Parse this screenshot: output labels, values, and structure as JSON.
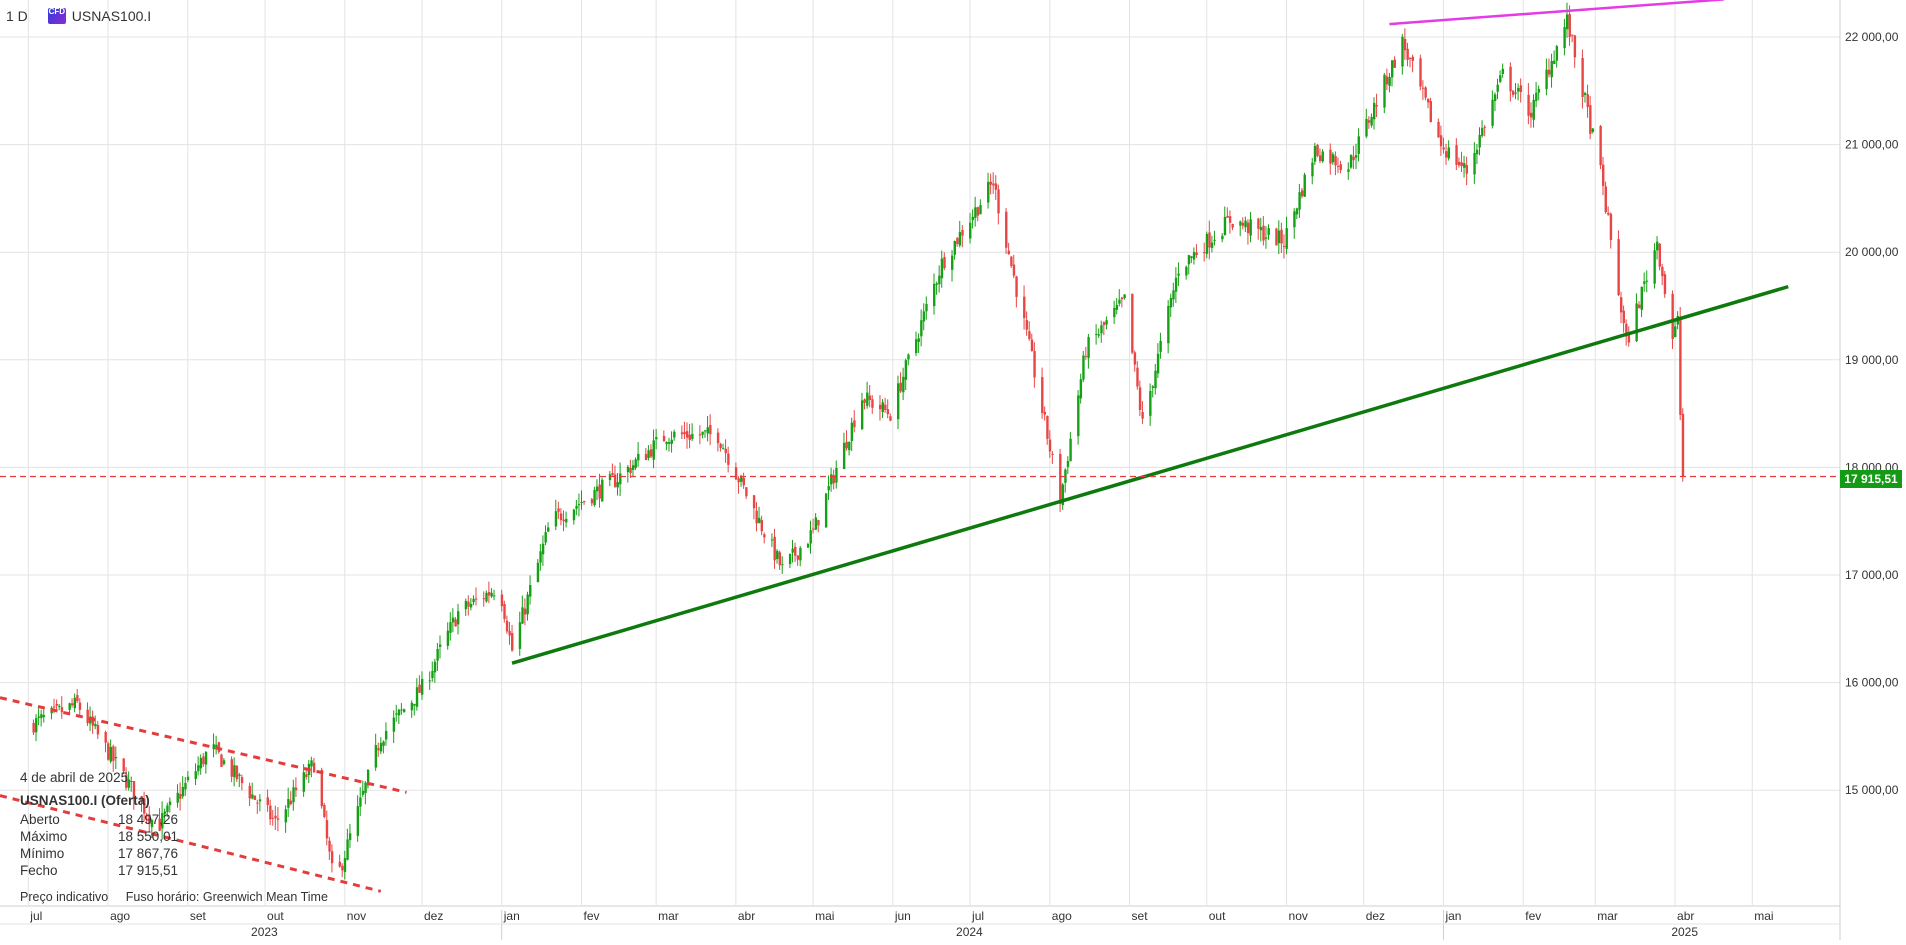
{
  "header": {
    "timeframe": "1 D",
    "cfd_badge": "CFD",
    "symbol": "USNAS100.I"
  },
  "info_panel": {
    "date": "4 de abril de 2025",
    "instrument": "USNAS100.I (Oferta)",
    "rows": [
      {
        "label": "Aberto",
        "value": "18 497,26"
      },
      {
        "label": "Máximo",
        "value": "18 550,01"
      },
      {
        "label": "Mínimo",
        "value": "17 867,76"
      },
      {
        "label": "Fecho",
        "value": "17 915,51"
      }
    ]
  },
  "footer": {
    "note": "Preço indicativo",
    "timezone": "Fuso horário: Greenwich Mean Time"
  },
  "current_price_label": "17 915,51",
  "colors": {
    "up": "#16a016",
    "down": "#e84545",
    "trend_green": "#0e7a0e",
    "trend_magenta": "#e43ce4",
    "channel_red": "#e43c3c",
    "grid": "#e3e3e3",
    "price_tag": "#159a15"
  },
  "chart_data": {
    "type": "candlestick",
    "title": "",
    "ylim": [
      14000,
      22350
    ],
    "y_ticks": [
      "15 000,00",
      "16 000,00",
      "17 000,00",
      "18 000,00",
      "19 000,00",
      "20 000,00",
      "21 000,00",
      "22 000,00"
    ],
    "x_ticks": [
      "jul",
      "ago",
      "set",
      "out",
      "nov",
      "dez",
      "jan",
      "fev",
      "mar",
      "abr",
      "mai",
      "jun",
      "jul",
      "ago",
      "set",
      "out",
      "nov",
      "dez",
      "jan",
      "fev",
      "mar",
      "abr",
      "mai"
    ],
    "years": [
      "2023",
      "2024",
      "2025"
    ],
    "current_price": 17915.51,
    "anchor_points": [
      [
        "2023-07-01",
        15600
      ],
      [
        "2023-07-20",
        15800
      ],
      [
        "2023-08-20",
        14650
      ],
      [
        "2023-09-10",
        15400
      ],
      [
        "2023-10-05",
        14700
      ],
      [
        "2023-10-20",
        15250
      ],
      [
        "2023-10-28",
        14100
      ],
      [
        "2023-11-15",
        15500
      ],
      [
        "2023-12-01",
        15950
      ],
      [
        "2023-12-15",
        16650
      ],
      [
        "2023-12-31",
        16900
      ],
      [
        "2024-01-05",
        16300
      ],
      [
        "2024-01-20",
        17500
      ],
      [
        "2024-02-15",
        17900
      ],
      [
        "2024-03-05",
        18300
      ],
      [
        "2024-03-25",
        18300
      ],
      [
        "2024-04-19",
        17050
      ],
      [
        "2024-05-01",
        17400
      ],
      [
        "2024-05-20",
        18650
      ],
      [
        "2024-05-31",
        18500
      ],
      [
        "2024-06-20",
        19900
      ],
      [
        "2024-07-10",
        20650
      ],
      [
        "2024-07-25",
        19000
      ],
      [
        "2024-08-05",
        17700
      ],
      [
        "2024-08-15",
        19100
      ],
      [
        "2024-08-30",
        19550
      ],
      [
        "2024-09-06",
        18400
      ],
      [
        "2024-09-20",
        19850
      ],
      [
        "2024-10-10",
        20300
      ],
      [
        "2024-10-31",
        20100
      ],
      [
        "2024-11-12",
        20950
      ],
      [
        "2024-11-25",
        20800
      ],
      [
        "2024-12-16",
        21950
      ],
      [
        "2024-12-31",
        21000
      ],
      [
        "2025-01-10",
        20750
      ],
      [
        "2025-01-24",
        21650
      ],
      [
        "2025-02-04",
        21300
      ],
      [
        "2025-02-18",
        22150
      ],
      [
        "2025-03-03",
        20750
      ],
      [
        "2025-03-13",
        19150
      ],
      [
        "2025-03-25",
        20100
      ],
      [
        "2025-03-31",
        19200
      ],
      [
        "2025-04-02",
        19350
      ],
      [
        "2025-04-03",
        18500
      ],
      [
        "2025-04-04",
        17915.51
      ]
    ],
    "annotations": [
      {
        "type": "trendline",
        "color": "green",
        "from": [
          "2024-01-05",
          16180
        ],
        "to": [
          "2025-05-15",
          19680
        ]
      },
      {
        "type": "trendline",
        "color": "magenta",
        "from": [
          "2024-12-11",
          22120
        ],
        "to": [
          "2025-04-20",
          22350
        ]
      },
      {
        "type": "dashed_line",
        "color": "red",
        "from": [
          "2023-06-20",
          15860
        ],
        "to": [
          "2023-11-25",
          14980
        ]
      },
      {
        "type": "dashed_line",
        "color": "red",
        "from": [
          "2023-06-20",
          14950
        ],
        "to": [
          "2023-11-15",
          14060
        ]
      },
      {
        "type": "horizontal_line",
        "color": "red",
        "value": 17915.51
      }
    ]
  }
}
